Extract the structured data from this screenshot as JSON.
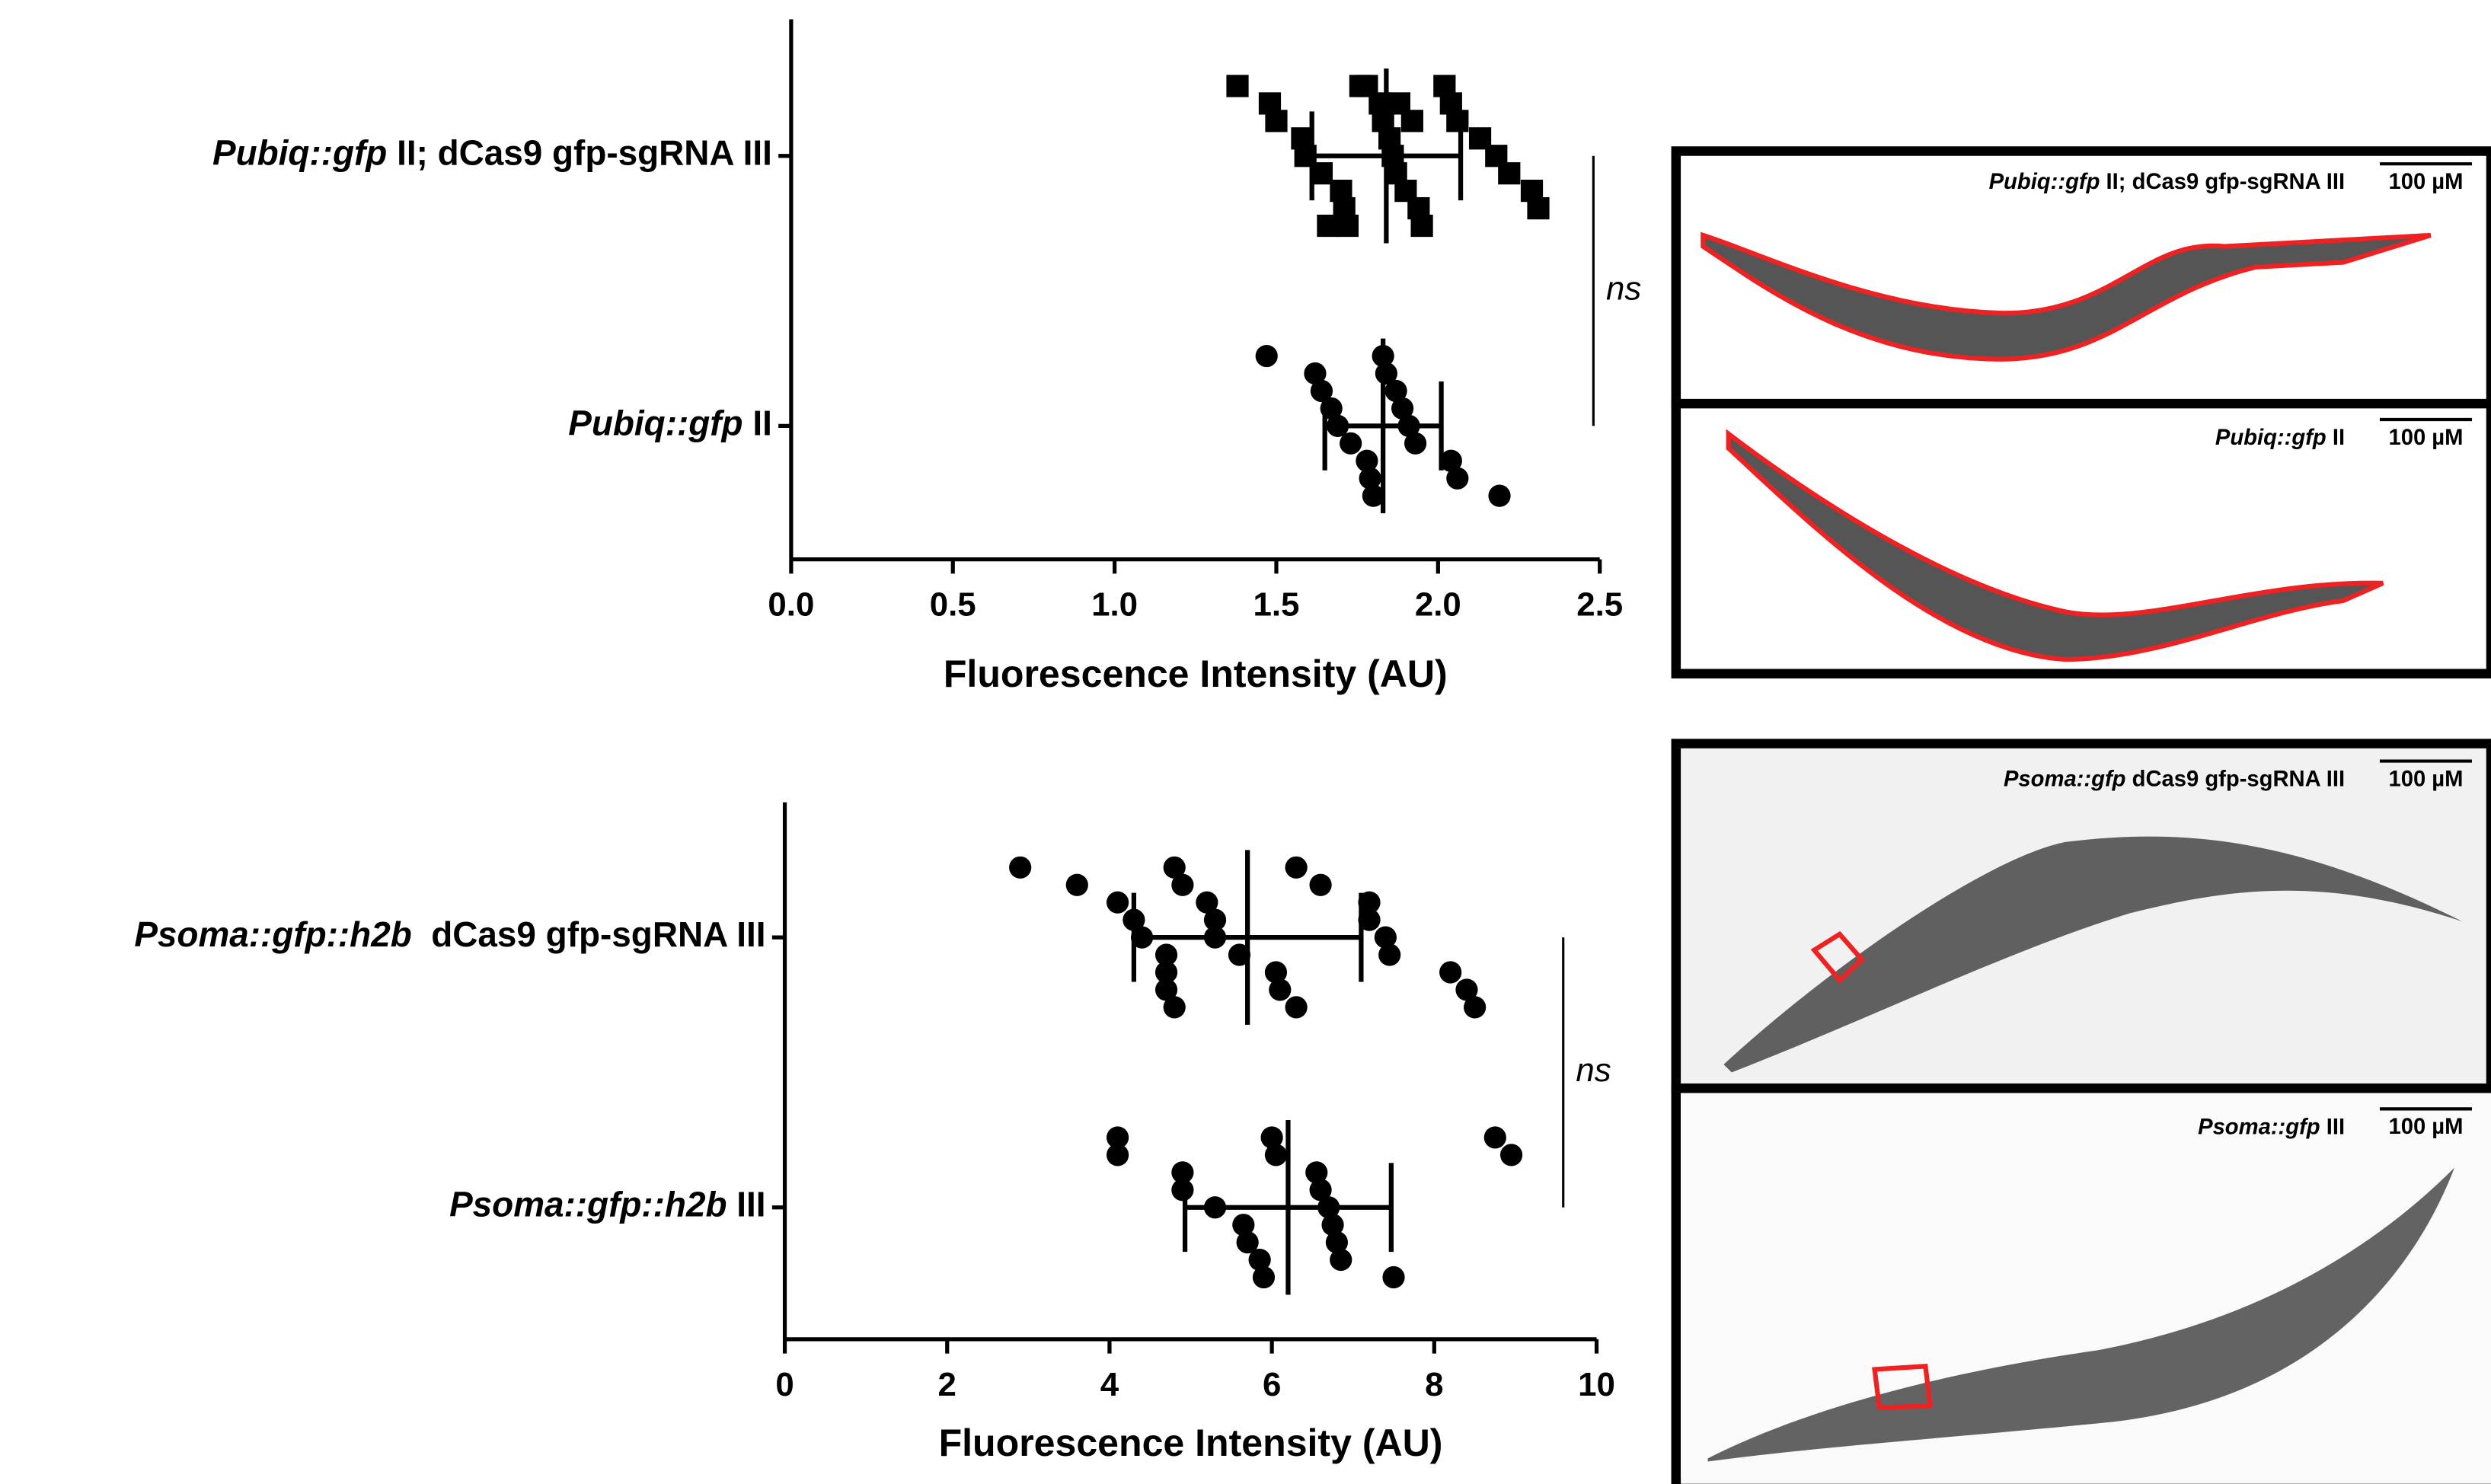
{
  "chart_data": [
    {
      "type": "dotplot",
      "xlabel": "Fluorescence Intensity (AU)",
      "xlim": [
        0,
        2.5
      ],
      "xticks": [
        {
          "value": 0,
          "label": "0.0"
        },
        0.5,
        {
          "value": 1,
          "label": "1.0"
        },
        1.5,
        {
          "value": 2,
          "label": "2.0"
        },
        2.5
      ],
      "groups": [
        {
          "label": {
            "italic": "Pubiq::gfp",
            "plain": " II; dCas9 gfp-sgRNA III"
          },
          "marker": "square",
          "values": [
            1.38,
            1.48,
            1.5,
            1.58,
            1.59,
            1.64,
            1.7,
            1.71,
            1.72,
            1.78,
            1.82,
            1.83,
            1.85,
            1.86,
            1.87,
            1.9,
            1.94,
            1.95,
            2.02,
            2.04,
            2.06,
            2.13,
            2.18,
            2.22,
            2.29,
            2.31,
            1.66,
            1.76,
            1.88,
            1.92
          ],
          "mean": 1.84,
          "sd": 0.23
        },
        {
          "label": {
            "italic": "Pubiq::gfp",
            "plain": " II"
          },
          "marker": "circle",
          "values": [
            1.47,
            1.62,
            1.64,
            1.67,
            1.69,
            1.73,
            1.78,
            1.79,
            1.8,
            1.83,
            1.84,
            1.87,
            1.89,
            1.91,
            1.93,
            2.04,
            2.06,
            2.19
          ],
          "mean": 1.83,
          "sd": 0.18
        }
      ],
      "annotation": "ns"
    },
    {
      "type": "dotplot",
      "xlabel": "Fluorescence Intensity (AU)",
      "xlim": [
        0,
        10
      ],
      "xticks": [
        0,
        2,
        4,
        6,
        8,
        10
      ],
      "groups": [
        {
          "label": {
            "italic": "Psoma::gfp::h2b",
            "plain": "  dCas9 gfp-sgRNA III"
          },
          "marker": "circle",
          "values": [
            2.9,
            3.6,
            4.1,
            4.3,
            4.4,
            4.7,
            4.7,
            4.7,
            4.8,
            4.8,
            4.9,
            5.2,
            5.3,
            5.3,
            5.6,
            6.05,
            6.1,
            6.3,
            6.3,
            6.6,
            7.2,
            7.2,
            7.4,
            7.45,
            8.2,
            8.4,
            8.5
          ],
          "mean": 5.7,
          "sd": 1.4
        },
        {
          "label": {
            "italic": "Psoma::gfp::h2b",
            "plain": " III"
          },
          "marker": "circle",
          "values": [
            4.1,
            4.1,
            4.9,
            4.9,
            5.3,
            5.65,
            5.7,
            5.85,
            5.9,
            6.0,
            6.05,
            6.55,
            6.6,
            6.7,
            6.75,
            6.8,
            6.85,
            7.5,
            8.75,
            8.95
          ],
          "mean": 6.2,
          "sd": 1.27
        }
      ],
      "annotation": "ns"
    }
  ],
  "panels": [
    {
      "italic": "Pubiq::gfp",
      "plain": " II; dCas9 gfp-sgRNA III",
      "scale": "100 µM"
    },
    {
      "italic": "Pubiq::gfp",
      "plain": " II",
      "scale": "100 µM"
    },
    {
      "italic": "Psoma::gfp",
      "plain": " dCas9 gfp-sgRNA III",
      "scale": "100 µM"
    },
    {
      "italic": "Psoma::gfp",
      "plain": " III",
      "scale": "100 µM"
    }
  ]
}
